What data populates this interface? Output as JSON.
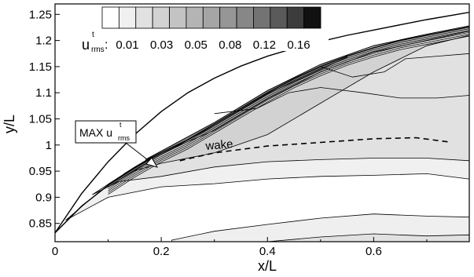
{
  "chart_data": {
    "type": "contour",
    "xlabel": "x/L",
    "ylabel": "y/L",
    "xlim": [
      0,
      0.78
    ],
    "ylim": [
      0.815,
      1.27
    ],
    "x_ticks": [
      "0",
      "0.2",
      "0.4",
      "0.6"
    ],
    "x_tick_values": [
      0,
      0.2,
      0.4,
      0.6
    ],
    "y_ticks": [
      "0.85",
      "0.9",
      "0.95",
      "1",
      "1.05",
      "1.1",
      "1.15",
      "1.2",
      "1.25"
    ],
    "y_tick_values": [
      0.85,
      0.9,
      0.95,
      1.0,
      1.05,
      1.1,
      1.15,
      1.2,
      1.25
    ],
    "legend": {
      "symbol_main": "u",
      "symbol_sup": "t",
      "symbol_sub": "rms",
      "separator": ":",
      "tick_labels": [
        "0.01",
        "0.03",
        "0.05",
        "0.08",
        "0.12",
        "0.16"
      ],
      "level_colors": [
        "#ffffff",
        "#f0f0f0",
        "#e1e1e1",
        "#d2d2d2",
        "#c3c3c3",
        "#b4b4b4",
        "#a5a5a5",
        "#969696",
        "#878787",
        "#737373",
        "#5a5a5a",
        "#3c3c3c",
        "#111111"
      ]
    },
    "annotations": {
      "wake_label": "wake",
      "max_label_main": "MAX u",
      "max_label_sup": "t",
      "max_label_sub": "rms"
    },
    "outer_curve": [
      [
        0,
        0.832
      ],
      [
        0.05,
        0.907
      ],
      [
        0.1,
        0.968
      ],
      [
        0.15,
        1.02
      ],
      [
        0.2,
        1.064
      ],
      [
        0.25,
        1.1
      ],
      [
        0.3,
        1.128
      ],
      [
        0.35,
        1.151
      ],
      [
        0.4,
        1.17
      ],
      [
        0.45,
        1.185
      ],
      [
        0.5,
        1.198
      ],
      [
        0.55,
        1.21
      ],
      [
        0.6,
        1.22
      ],
      [
        0.65,
        1.23
      ],
      [
        0.7,
        1.24
      ],
      [
        0.78,
        1.254
      ]
    ],
    "shear_layer_edge": [
      [
        0,
        0.832
      ],
      [
        0.05,
        0.883
      ],
      [
        0.1,
        0.923
      ],
      [
        0.15,
        0.956
      ],
      [
        0.2,
        0.985
      ],
      [
        0.25,
        1.01
      ],
      [
        0.3,
        1.04
      ],
      [
        0.35,
        1.07
      ],
      [
        0.4,
        1.1
      ],
      [
        0.45,
        1.127
      ],
      [
        0.5,
        1.15
      ],
      [
        0.55,
        1.17
      ],
      [
        0.6,
        1.186
      ],
      [
        0.65,
        1.2
      ],
      [
        0.7,
        1.21
      ],
      [
        0.78,
        1.226
      ]
    ],
    "wake_line": [
      [
        0.235,
        0.97
      ],
      [
        0.3,
        0.985
      ],
      [
        0.4,
        0.998
      ],
      [
        0.5,
        1.005
      ],
      [
        0.6,
        1.012
      ],
      [
        0.68,
        1.014
      ],
      [
        0.74,
        1.006
      ]
    ],
    "contour_regions": [
      {
        "level": "0.01",
        "color": "#f0f0f0",
        "upper": [
          [
            0.02,
            0.856
          ],
          [
            0.1,
            0.925
          ],
          [
            0.2,
            0.988
          ],
          [
            0.3,
            1.043
          ],
          [
            0.4,
            1.104
          ],
          [
            0.5,
            1.154
          ],
          [
            0.6,
            1.19
          ],
          [
            0.7,
            1.212
          ],
          [
            0.78,
            1.228
          ]
        ],
        "lower": [
          [
            0.78,
            0.935
          ],
          [
            0.7,
            0.945
          ],
          [
            0.6,
            0.942
          ],
          [
            0.5,
            0.94
          ],
          [
            0.4,
            0.935
          ],
          [
            0.3,
            0.926
          ],
          [
            0.2,
            0.92
          ],
          [
            0.1,
            0.9
          ],
          [
            0.02,
            0.856
          ]
        ]
      },
      {
        "level": "0.03",
        "color": "#e1e1e1",
        "upper": [
          [
            0.07,
            0.905
          ],
          [
            0.15,
            0.958
          ],
          [
            0.2,
            0.988
          ],
          [
            0.3,
            1.043
          ],
          [
            0.4,
            1.104
          ],
          [
            0.5,
            1.154
          ],
          [
            0.6,
            1.19
          ],
          [
            0.7,
            1.212
          ],
          [
            0.78,
            1.228
          ]
        ],
        "lower": [
          [
            0.78,
            0.97
          ],
          [
            0.7,
            0.975
          ],
          [
            0.6,
            0.975
          ],
          [
            0.5,
            0.972
          ],
          [
            0.4,
            0.968
          ],
          [
            0.3,
            0.958
          ],
          [
            0.2,
            0.94
          ],
          [
            0.12,
            0.93
          ],
          [
            0.07,
            0.905
          ]
        ]
      },
      {
        "level": "0.05",
        "color": "#d2d2d2",
        "upper": [
          [
            0.13,
            0.945
          ],
          [
            0.2,
            0.988
          ],
          [
            0.3,
            1.043
          ],
          [
            0.4,
            1.104
          ],
          [
            0.5,
            1.154
          ],
          [
            0.6,
            1.19
          ],
          [
            0.7,
            1.212
          ],
          [
            0.78,
            1.228
          ]
        ],
        "lower": [
          [
            0.78,
            1.21
          ],
          [
            0.7,
            1.19
          ],
          [
            0.65,
            1.165
          ],
          [
            0.6,
            1.14
          ],
          [
            0.5,
            1.08
          ],
          [
            0.4,
            1.02
          ],
          [
            0.3,
            0.985
          ],
          [
            0.2,
            0.965
          ],
          [
            0.13,
            0.945
          ]
        ]
      },
      {
        "level": "0.08",
        "color": "#b4b4b4",
        "upper": [
          [
            0.17,
            0.972
          ],
          [
            0.3,
            1.043
          ],
          [
            0.4,
            1.104
          ],
          [
            0.5,
            1.154
          ],
          [
            0.6,
            1.19
          ],
          [
            0.7,
            1.212
          ],
          [
            0.78,
            1.228
          ]
        ],
        "lower": [
          [
            0.78,
            1.218
          ],
          [
            0.6,
            1.178
          ],
          [
            0.5,
            1.14
          ],
          [
            0.4,
            1.088
          ],
          [
            0.3,
            1.028
          ],
          [
            0.17,
            0.972
          ]
        ]
      },
      {
        "level": "0.12",
        "color": "#878787",
        "upper": [
          [
            0.1,
            0.925
          ],
          [
            0.2,
            0.988
          ],
          [
            0.3,
            1.043
          ],
          [
            0.4,
            1.104
          ],
          [
            0.5,
            1.154
          ],
          [
            0.55,
            1.172
          ]
        ],
        "lower": [
          [
            0.55,
            1.168
          ],
          [
            0.4,
            1.098
          ],
          [
            0.3,
            1.037
          ],
          [
            0.2,
            0.982
          ],
          [
            0.1,
            0.92
          ]
        ]
      }
    ],
    "lower_region": {
      "level": "0.01",
      "color": "#efefef",
      "upper": [
        [
          0.22,
          0.818
        ],
        [
          0.3,
          0.835
        ],
        [
          0.4,
          0.848
        ],
        [
          0.5,
          0.86
        ],
        [
          0.6,
          0.868
        ],
        [
          0.7,
          0.864
        ],
        [
          0.78,
          0.862
        ]
      ],
      "lower": [
        [
          0.78,
          0.815
        ],
        [
          0.22,
          0.815
        ]
      ]
    },
    "lower_region_inner": {
      "level": "0.03",
      "color": "#e1e1e1",
      "upper": [
        [
          0.4,
          0.815
        ],
        [
          0.5,
          0.824
        ],
        [
          0.6,
          0.83
        ],
        [
          0.7,
          0.826
        ],
        [
          0.78,
          0.828
        ]
      ],
      "lower": [
        [
          0.78,
          0.815
        ],
        [
          0.4,
          0.815
        ]
      ]
    },
    "mid_contours": [
      [
        [
          0.3,
          1.06
        ],
        [
          0.38,
          1.07
        ],
        [
          0.44,
          1.1
        ],
        [
          0.5,
          1.11
        ],
        [
          0.58,
          1.1
        ],
        [
          0.65,
          1.09
        ],
        [
          0.72,
          1.09
        ],
        [
          0.78,
          1.095
        ]
      ],
      [
        [
          0.5,
          1.15
        ],
        [
          0.56,
          1.13
        ],
        [
          0.62,
          1.14
        ],
        [
          0.66,
          1.165
        ],
        [
          0.72,
          1.17
        ],
        [
          0.78,
          1.175
        ]
      ]
    ]
  }
}
